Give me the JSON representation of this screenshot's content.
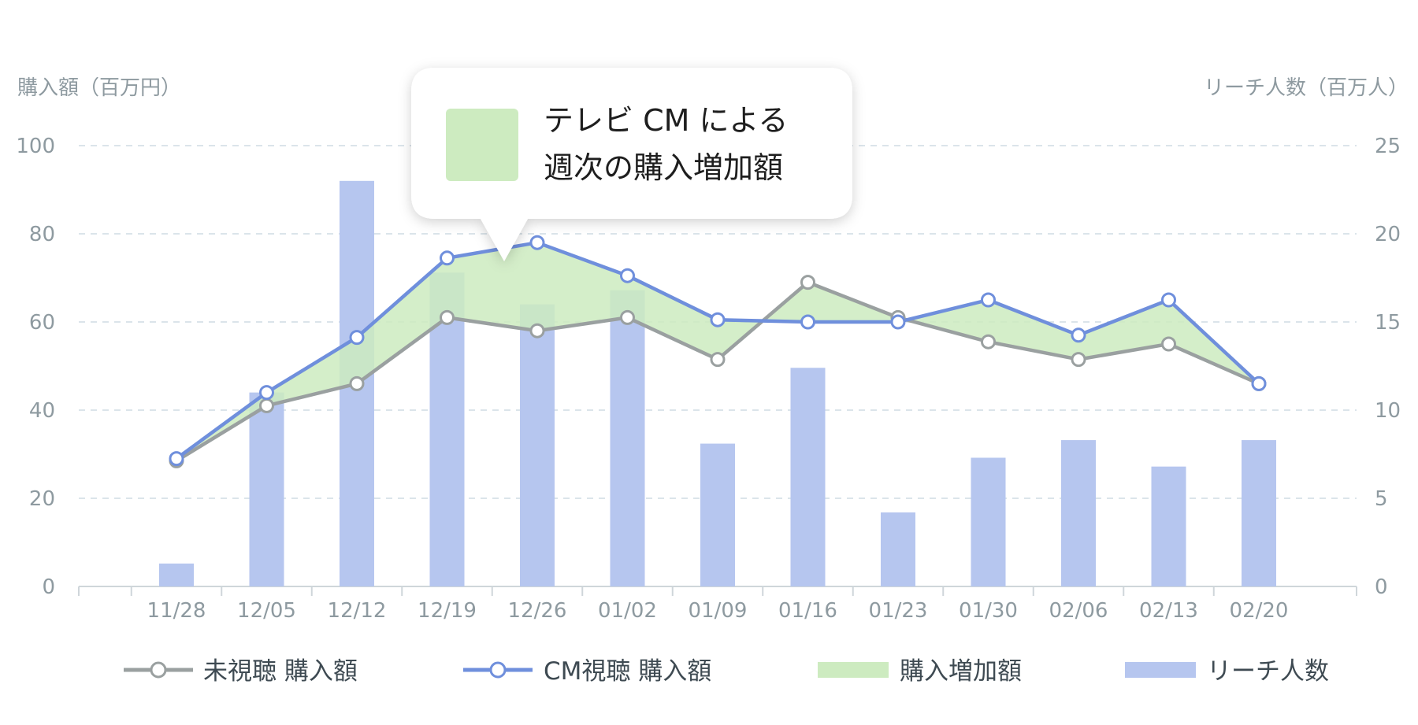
{
  "chart_data": {
    "type": "bar+line",
    "left_axis_title": "購入額（百万円）",
    "right_axis_title": "リーチ人数（百万人）",
    "categories": [
      "11/28",
      "12/05",
      "12/12",
      "12/19",
      "12/26",
      "01/02",
      "01/09",
      "01/16",
      "01/23",
      "01/30",
      "02/06",
      "02/13",
      "02/20"
    ],
    "left_axis": {
      "min": 0,
      "max": 100,
      "ticks": [
        0,
        20,
        40,
        60,
        80,
        100
      ]
    },
    "right_axis": {
      "min": 0,
      "max": 25,
      "ticks": [
        0,
        5,
        10,
        15,
        20,
        25
      ]
    },
    "grid": true,
    "series": [
      {
        "name": "未視聴 購入額",
        "kind": "line",
        "axis": "left",
        "color": "#9aa0a0",
        "values": [
          28.5,
          41,
          46,
          61,
          58,
          61,
          51.5,
          69,
          61,
          55.5,
          51.5,
          55,
          46
        ]
      },
      {
        "name": "CM視聴 購入額",
        "kind": "line",
        "axis": "left",
        "color": "#6f8fdc",
        "values": [
          29,
          44,
          56.5,
          74.5,
          78,
          70.5,
          60.5,
          60,
          60,
          65,
          57,
          65,
          46
        ]
      },
      {
        "name": "購入増加額",
        "kind": "area-between",
        "color": "#cdebc0"
      },
      {
        "name": "リーチ人数",
        "kind": "bar",
        "axis": "right",
        "color": "#b6c6ef",
        "values": [
          1.3,
          11,
          23,
          17.8,
          16,
          16.8,
          8.1,
          12.4,
          4.2,
          7.3,
          8.3,
          6.8,
          8.3
        ]
      }
    ],
    "legend_position": "bottom",
    "tooltip": {
      "lines": [
        "テレビ CM による",
        "週次の購入増加額"
      ],
      "swatch_color": "#cdebc0"
    }
  }
}
